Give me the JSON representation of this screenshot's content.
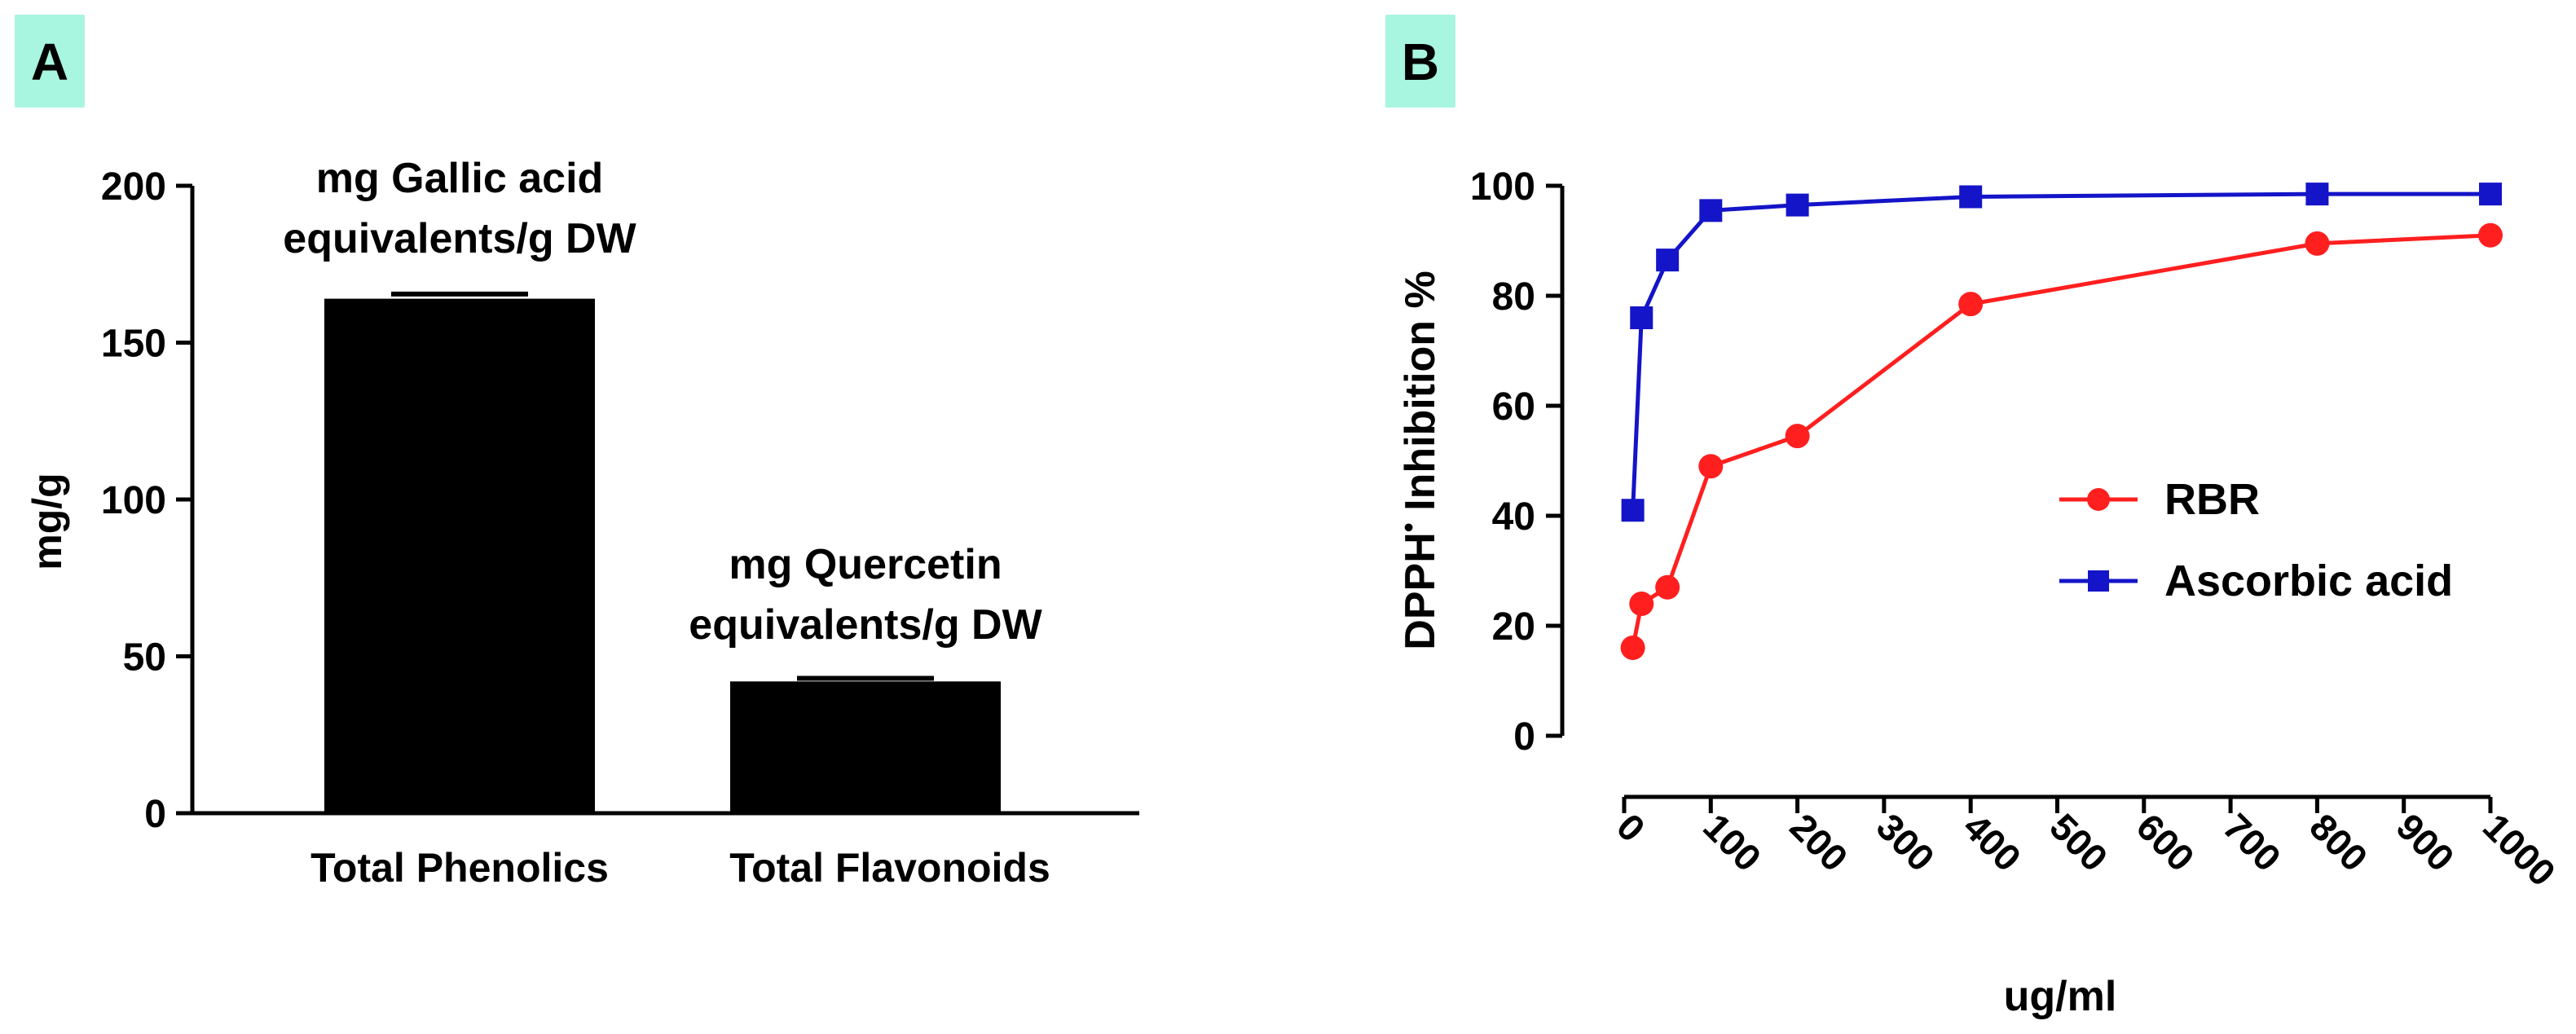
{
  "panel_label_bg": "#a8f5e0",
  "chart_data": [
    {
      "panel": "A",
      "type": "bar",
      "categories": [
        "Total Phenolics",
        "Total Flavonoids"
      ],
      "values": [
        164,
        42
      ],
      "error_upper": [
        165.5,
        43
      ],
      "bar_color": "#000000",
      "ylabel": "mg/g",
      "ylim": [
        0,
        200
      ],
      "yticks": [
        0,
        50,
        100,
        150,
        200
      ],
      "annotations": [
        [
          "mg Gallic acid",
          "equivalents/g DW"
        ],
        [
          "mg Quercetin",
          "equivalents/g DW"
        ]
      ]
    },
    {
      "panel": "B",
      "type": "line",
      "xlabel": "ug/ml",
      "ylabel": "DPPH",
      "ylabel_superscript": "•",
      "ylabel_suffix": " Inhibition %",
      "xlim": [
        0,
        1000
      ],
      "ylim": [
        0,
        100
      ],
      "xticks": [
        0,
        100,
        200,
        300,
        400,
        500,
        600,
        700,
        800,
        900,
        1000
      ],
      "yticks": [
        0,
        20,
        40,
        60,
        80,
        100
      ],
      "legend_position": "center-right",
      "series": [
        {
          "name": "RBR",
          "color": "#ff1f1f",
          "marker": "circle",
          "x": [
            10,
            20,
            50,
            100,
            200,
            400,
            800,
            1000
          ],
          "y": [
            16,
            24,
            27,
            49,
            54.5,
            78.5,
            89.5,
            91
          ]
        },
        {
          "name": "Ascorbic acid",
          "color": "#1414c8",
          "marker": "square",
          "x": [
            10,
            20,
            50,
            100,
            200,
            400,
            800,
            1000
          ],
          "y": [
            41,
            76,
            86.5,
            95.5,
            96.5,
            98,
            98.5,
            98.5
          ]
        }
      ]
    }
  ]
}
